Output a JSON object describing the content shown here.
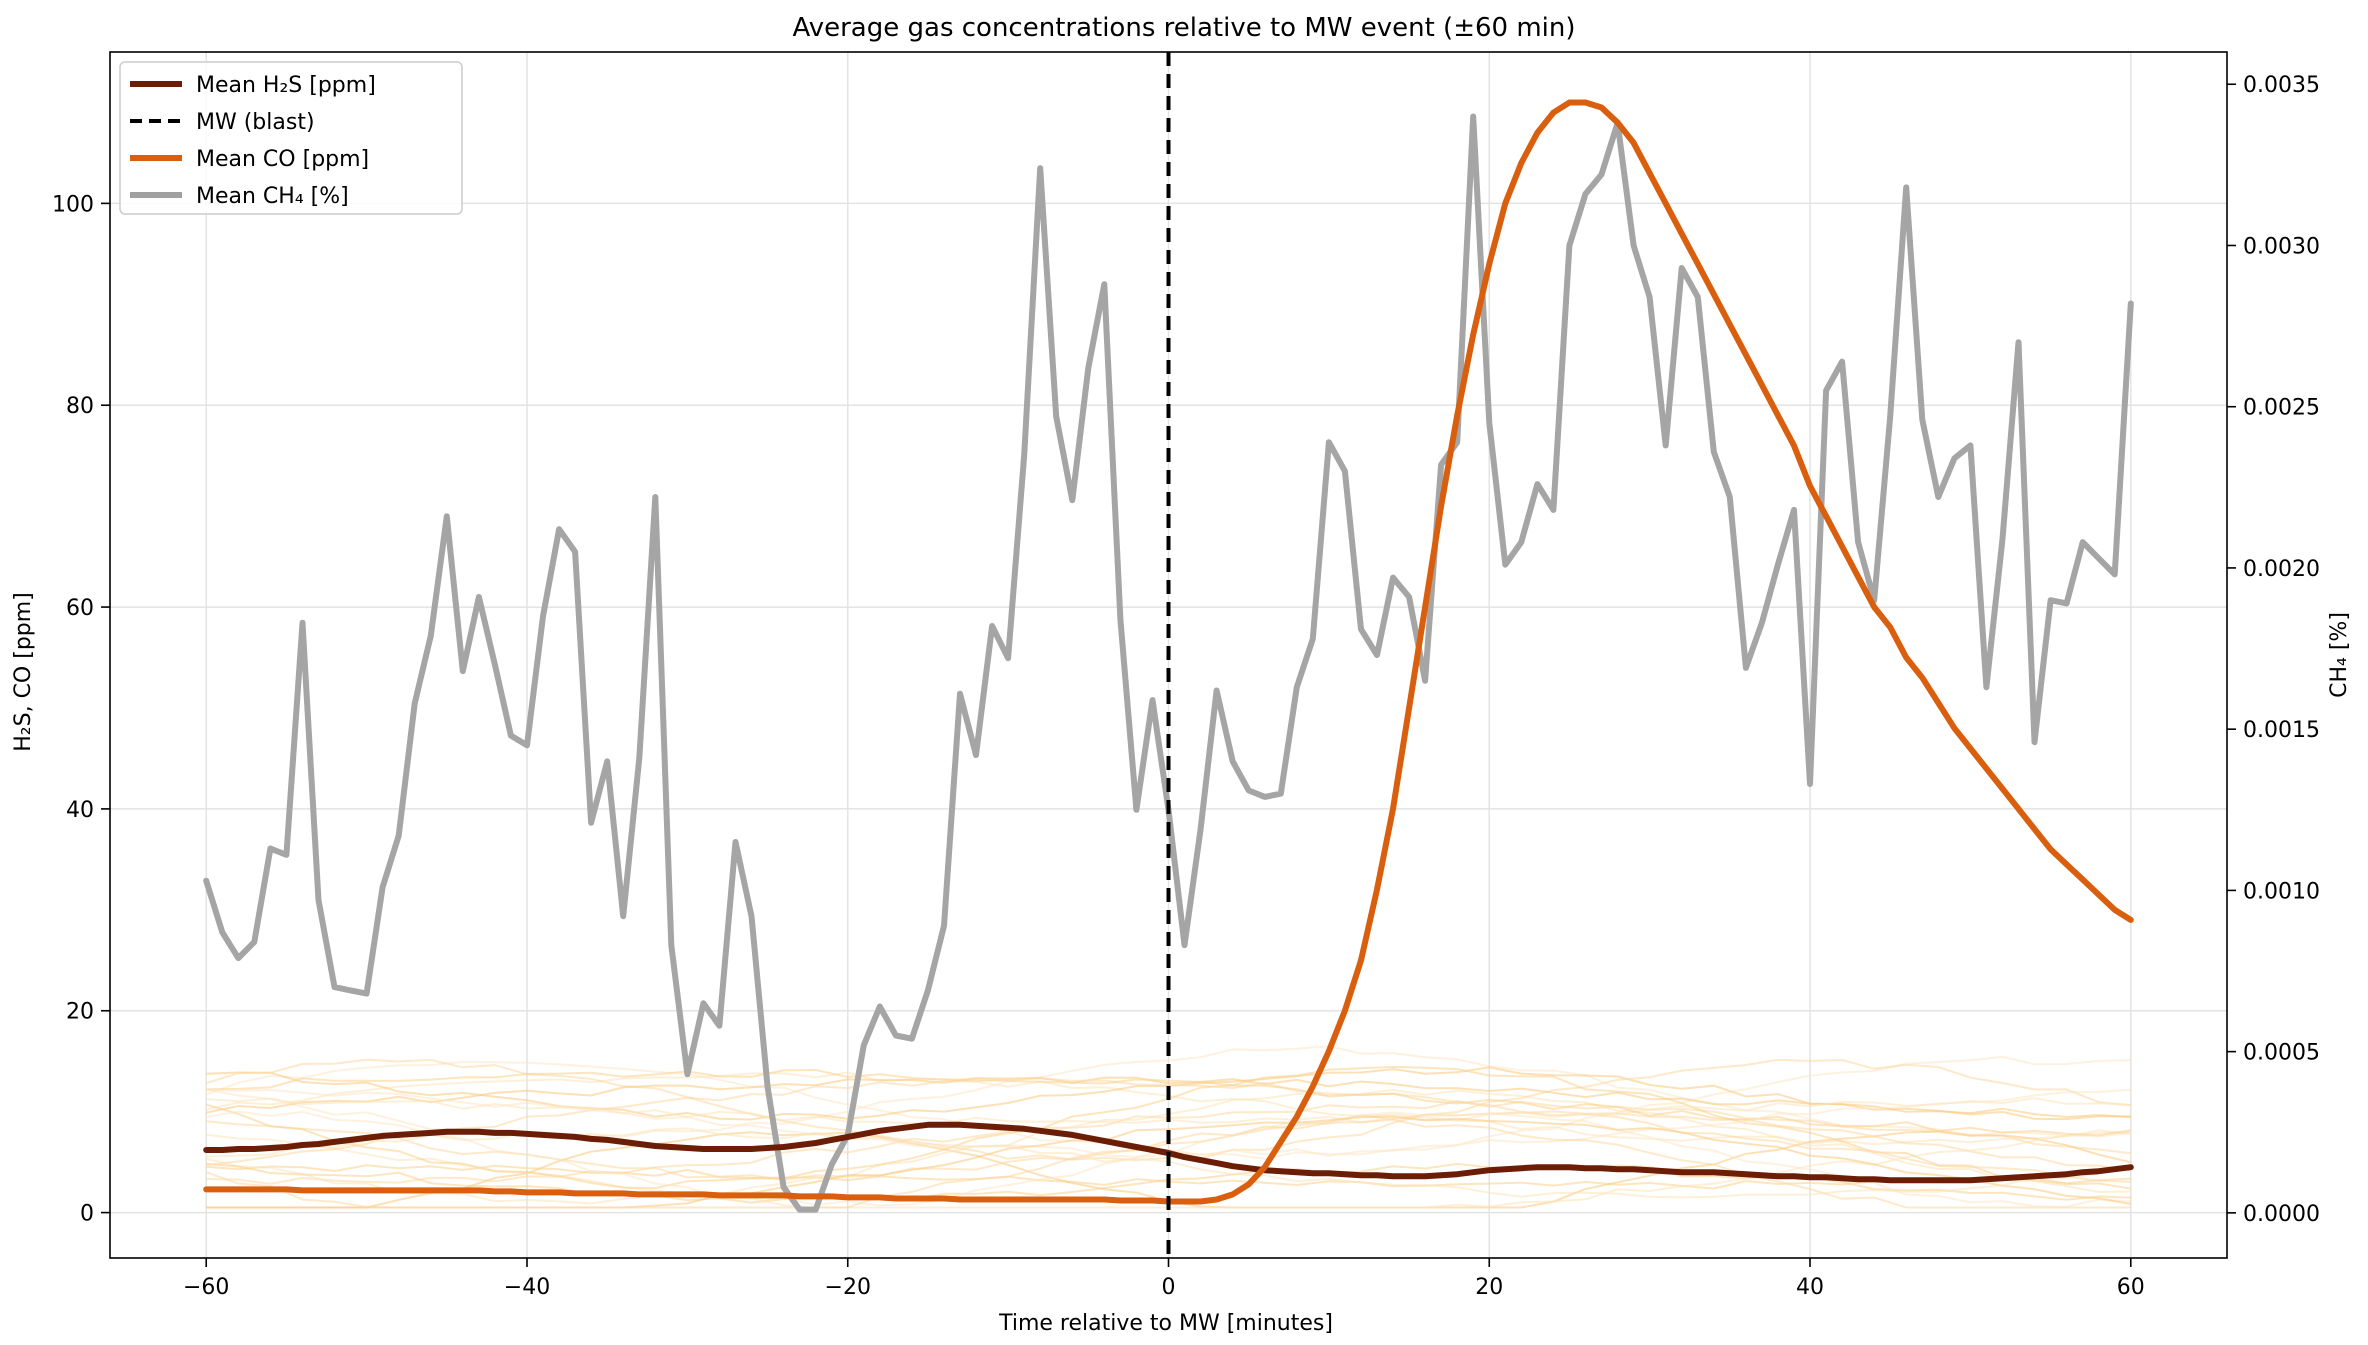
{
  "chart_data": {
    "type": "line",
    "title": "Average gas concentrations relative to MW event (±60 min)",
    "xlabel": "Time relative to MW [minutes]",
    "ylabel": "H₂S, CO [ppm]",
    "ylabel_right": "CH₄ [%]",
    "xlim": [
      -66,
      66
    ],
    "ylim": [
      -4.5,
      115
    ],
    "ylim_right": [
      -0.00014,
      0.0036
    ],
    "x_ticks": [
      -60,
      -40,
      -20,
      0,
      20,
      40,
      60
    ],
    "y_ticks": [
      0,
      20,
      40,
      60,
      80,
      100
    ],
    "y_ticks_right": [
      "0.0000",
      "0.0005",
      "0.0010",
      "0.0015",
      "0.0020",
      "0.0025",
      "0.0030",
      "0.0035"
    ],
    "grid": true,
    "legend_position": "top-left",
    "vline": {
      "x": 0,
      "style": "dashed",
      "color": "#000000"
    },
    "legend": [
      {
        "label": "Mean H₂S [ppm]",
        "color": "#6b1d05",
        "style": "solid"
      },
      {
        "label": "MW (blast)",
        "color": "#000000",
        "style": "dashed"
      },
      {
        "label": "Mean CO [ppm]",
        "color": "#d95f0e",
        "style": "solid"
      },
      {
        "label": "Mean CH₄ [%]",
        "color": "#a0a0a0",
        "style": "solid"
      }
    ],
    "x": [
      -60,
      -59,
      -58,
      -57,
      -56,
      -55,
      -54,
      -53,
      -52,
      -51,
      -50,
      -49,
      -48,
      -47,
      -46,
      -45,
      -44,
      -43,
      -42,
      -41,
      -40,
      -39,
      -38,
      -37,
      -36,
      -35,
      -34,
      -33,
      -32,
      -31,
      -30,
      -29,
      -28,
      -27,
      -26,
      -25,
      -24,
      -23,
      -22,
      -21,
      -20,
      -19,
      -18,
      -17,
      -16,
      -15,
      -14,
      -13,
      -12,
      -11,
      -10,
      -9,
      -8,
      -7,
      -6,
      -5,
      -4,
      -3,
      -2,
      -1,
      0,
      1,
      2,
      3,
      4,
      5,
      6,
      7,
      8,
      9,
      10,
      11,
      12,
      13,
      14,
      15,
      16,
      17,
      18,
      19,
      20,
      21,
      22,
      23,
      24,
      25,
      26,
      27,
      28,
      29,
      30,
      31,
      32,
      33,
      34,
      35,
      36,
      37,
      38,
      39,
      40,
      41,
      42,
      43,
      44,
      45,
      46,
      47,
      48,
      49,
      50,
      51,
      52,
      53,
      54,
      55,
      56,
      57,
      58,
      59,
      60
    ],
    "series": [
      {
        "name": "Mean H₂S [ppm]",
        "axis": "left",
        "color": "#6b1d05",
        "width": 6,
        "values": [
          6.2,
          6.2,
          6.3,
          6.3,
          6.4,
          6.5,
          6.7,
          6.8,
          7.0,
          7.2,
          7.4,
          7.6,
          7.7,
          7.8,
          7.9,
          8.0,
          8.0,
          8.0,
          7.9,
          7.9,
          7.8,
          7.7,
          7.6,
          7.5,
          7.3,
          7.2,
          7.0,
          6.8,
          6.6,
          6.5,
          6.4,
          6.3,
          6.3,
          6.3,
          6.3,
          6.4,
          6.5,
          6.7,
          6.9,
          7.2,
          7.5,
          7.8,
          8.1,
          8.3,
          8.5,
          8.7,
          8.7,
          8.7,
          8.6,
          8.5,
          8.4,
          8.3,
          8.1,
          7.9,
          7.7,
          7.4,
          7.1,
          6.8,
          6.5,
          6.2,
          5.9,
          5.5,
          5.2,
          4.9,
          4.6,
          4.4,
          4.2,
          4.1,
          4.0,
          3.9,
          3.9,
          3.8,
          3.7,
          3.7,
          3.6,
          3.6,
          3.6,
          3.7,
          3.8,
          4.0,
          4.2,
          4.3,
          4.4,
          4.5,
          4.5,
          4.5,
          4.4,
          4.4,
          4.3,
          4.3,
          4.2,
          4.1,
          4.0,
          4.0,
          4.0,
          3.9,
          3.8,
          3.7,
          3.6,
          3.6,
          3.5,
          3.5,
          3.4,
          3.3,
          3.3,
          3.2,
          3.2,
          3.2,
          3.2,
          3.2,
          3.2,
          3.3,
          3.4,
          3.5,
          3.6,
          3.7,
          3.8,
          4.0,
          4.1,
          4.3,
          4.5
        ]
      },
      {
        "name": "Mean CO [ppm]",
        "axis": "left",
        "color": "#d95f0e",
        "width": 6,
        "values": [
          2.3,
          2.3,
          2.3,
          2.3,
          2.3,
          2.3,
          2.2,
          2.2,
          2.2,
          2.2,
          2.2,
          2.2,
          2.2,
          2.2,
          2.2,
          2.2,
          2.2,
          2.2,
          2.1,
          2.1,
          2.0,
          2.0,
          2.0,
          1.9,
          1.9,
          1.9,
          1.9,
          1.8,
          1.8,
          1.8,
          1.8,
          1.8,
          1.7,
          1.7,
          1.7,
          1.7,
          1.7,
          1.6,
          1.6,
          1.6,
          1.5,
          1.5,
          1.5,
          1.4,
          1.4,
          1.4,
          1.4,
          1.3,
          1.3,
          1.3,
          1.3,
          1.3,
          1.3,
          1.3,
          1.3,
          1.3,
          1.3,
          1.2,
          1.2,
          1.2,
          1.1,
          1.1,
          1.1,
          1.3,
          1.8,
          2.8,
          4.5,
          7.0,
          9.5,
          12.5,
          16,
          20,
          25,
          32,
          40,
          50,
          60,
          70,
          79,
          87,
          94,
          100,
          104,
          107,
          109,
          110,
          110,
          109.5,
          108,
          106,
          103,
          100,
          97,
          94,
          91,
          88,
          85,
          82,
          79,
          76,
          72,
          69,
          66,
          63,
          60,
          58,
          55,
          53,
          50.5,
          48,
          46,
          44,
          42,
          40,
          38,
          36,
          34.5,
          33,
          31.5,
          30,
          29
        ]
      },
      {
        "name": "Mean CH₄ [%]",
        "axis": "right",
        "color": "#a5a5a5",
        "width": 6,
        "values": [
          0.00103,
          0.00087,
          0.00079,
          0.00084,
          0.00113,
          0.00111,
          0.00183,
          0.00097,
          0.0007,
          0.00069,
          0.00068,
          0.00101,
          0.00117,
          0.00158,
          0.00179,
          0.00216,
          0.00168,
          0.00191,
          0.0017,
          0.00148,
          0.00145,
          0.00185,
          0.00212,
          0.00205,
          0.00121,
          0.0014,
          0.00092,
          0.00141,
          0.00222,
          0.00083,
          0.00043,
          0.00065,
          0.00058,
          0.00115,
          0.00092,
          0.00039,
          8e-05,
          1e-05,
          1e-05,
          0.00015,
          0.00024,
          0.00052,
          0.00064,
          0.00055,
          0.00054,
          0.00069,
          0.00089,
          0.00161,
          0.00142,
          0.00182,
          0.00172,
          0.00235,
          0.00324,
          0.00247,
          0.00221,
          0.00262,
          0.00288,
          0.00184,
          0.00125,
          0.00159,
          0.00125,
          0.00083,
          0.00119,
          0.00162,
          0.0014,
          0.00131,
          0.00129,
          0.0013,
          0.00163,
          0.00178,
          0.00239,
          0.0023,
          0.00181,
          0.00173,
          0.00197,
          0.00191,
          0.00165,
          0.00232,
          0.00239,
          0.0034,
          0.00245,
          0.00201,
          0.00208,
          0.00226,
          0.00218,
          0.003,
          0.00316,
          0.00322,
          0.00338,
          0.003,
          0.00284,
          0.00238,
          0.00293,
          0.00284,
          0.00236,
          0.00222,
          0.00169,
          0.00183,
          0.00201,
          0.00218,
          0.00133,
          0.00255,
          0.00264,
          0.00208,
          0.0019,
          0.00247,
          0.00318,
          0.00246,
          0.00222,
          0.00234,
          0.00238,
          0.00163,
          0.00209,
          0.0027,
          0.00146,
          0.0019,
          0.00189,
          0.00208,
          0.00203,
          0.00198,
          0.00282
        ]
      }
    ]
  }
}
